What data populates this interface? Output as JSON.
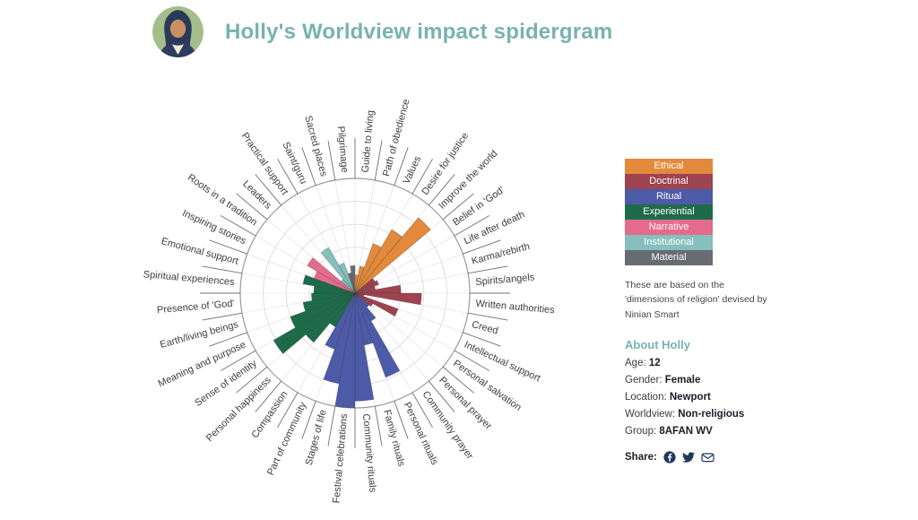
{
  "header": {
    "title": "Holly's Worldview impact spidergram"
  },
  "legend": {
    "items": [
      {
        "label": "Ethical",
        "color": "#e2893b"
      },
      {
        "label": "Doctrinal",
        "color": "#9e4350"
      },
      {
        "label": "Ritual",
        "color": "#4d5aa8"
      },
      {
        "label": "Experiential",
        "color": "#1e6b4a"
      },
      {
        "label": "Narrative",
        "color": "#e56b8c"
      },
      {
        "label": "Institutional",
        "color": "#85c0bd"
      },
      {
        "label": "Material",
        "color": "#676b72"
      }
    ],
    "caption": "These are based on the 'dimensions of religion' devised by Ninian Smart"
  },
  "about": {
    "heading": "About Holly",
    "fields": [
      {
        "label": "Age: ",
        "value": "12"
      },
      {
        "label": "Gender: ",
        "value": "Female"
      },
      {
        "label": "Location: ",
        "value": "Newport"
      },
      {
        "label": "Worldview: ",
        "value": "Non-religious"
      },
      {
        "label": "Group: ",
        "value": "8AFAN WV"
      }
    ],
    "share_label": "Share:"
  },
  "chart_data": {
    "type": "bar",
    "subtype": "radial-spidergram",
    "title": "Holly's Worldview impact spidergram",
    "rings": 5,
    "ylim": [
      0,
      5
    ],
    "grid": true,
    "legend_position": "right",
    "segments": [
      {
        "label": "Guide to living",
        "dimension": "Ethical",
        "value": 0.8
      },
      {
        "label": "Path of obedience",
        "dimension": "Ethical",
        "value": 1.2
      },
      {
        "label": "Values",
        "dimension": "Ethical",
        "value": 2.3
      },
      {
        "label": "Desire for justice",
        "dimension": "Ethical",
        "value": 3.2
      },
      {
        "label": "Improve the world",
        "dimension": "Ethical",
        "value": 4.3
      },
      {
        "label": "Belief in 'God'",
        "dimension": "Doctrinal",
        "value": 1.0
      },
      {
        "label": "Life after death",
        "dimension": "Doctrinal",
        "value": 1.1
      },
      {
        "label": "Karma/rebirth",
        "dimension": "Doctrinal",
        "value": 0.9
      },
      {
        "label": "Spirits/angels",
        "dimension": "Doctrinal",
        "value": 2.0
      },
      {
        "label": "Written authorities",
        "dimension": "Doctrinal",
        "value": 2.9
      },
      {
        "label": "Creed",
        "dimension": "Doctrinal",
        "value": 0.4
      },
      {
        "label": "Intellectual support",
        "dimension": "Doctrinal",
        "value": 2.0
      },
      {
        "label": "Personal salvation",
        "dimension": "Doctrinal",
        "value": 0.9
      },
      {
        "label": "Personal prayer",
        "dimension": "Ritual",
        "value": 0.8
      },
      {
        "label": "Community prayer",
        "dimension": "Ritual",
        "value": 1.4
      },
      {
        "label": "Personal rituals",
        "dimension": "Ritual",
        "value": 3.9
      },
      {
        "label": "Family rituals",
        "dimension": "Ritual",
        "value": 2.3
      },
      {
        "label": "Community rituals",
        "dimension": "Ritual",
        "value": 4.7
      },
      {
        "label": "Festival celebrations",
        "dimension": "Ritual",
        "value": 5.0
      },
      {
        "label": "Stages of life",
        "dimension": "Ritual",
        "value": 4.0
      },
      {
        "label": "Part of community",
        "dimension": "Ritual",
        "value": 2.6
      },
      {
        "label": "Compassion",
        "dimension": "Experiential",
        "value": 1.7
      },
      {
        "label": "Personal happiness",
        "dimension": "Experiential",
        "value": 2.8
      },
      {
        "label": "Sense of identity",
        "dimension": "Experiential",
        "value": 4.1
      },
      {
        "label": "Meaning and purpose",
        "dimension": "Experiential",
        "value": 3.0
      },
      {
        "label": "Earth/living beings",
        "dimension": "Experiential",
        "value": 2.3
      },
      {
        "label": "Presence of 'God'",
        "dimension": "Experiential",
        "value": 1.9
      },
      {
        "label": "Spiritual experiences",
        "dimension": "Experiential",
        "value": 1.8
      },
      {
        "label": "Emotional support",
        "dimension": "Experiential",
        "value": 2.3
      },
      {
        "label": "Inspiring stories",
        "dimension": "Narrative",
        "value": 1.9
      },
      {
        "label": "Roots in a tradition",
        "dimension": "Narrative",
        "value": 2.4
      },
      {
        "label": "Leaders",
        "dimension": "Institutional",
        "value": 0.8
      },
      {
        "label": "Practical support",
        "dimension": "Institutional",
        "value": 2.3
      },
      {
        "label": "Saint/guru",
        "dimension": "Institutional",
        "value": 1.4
      },
      {
        "label": "Sacred places",
        "dimension": "Material",
        "value": 0.9
      },
      {
        "label": "Pilgrimage",
        "dimension": "Material",
        "value": 1.2
      }
    ]
  }
}
